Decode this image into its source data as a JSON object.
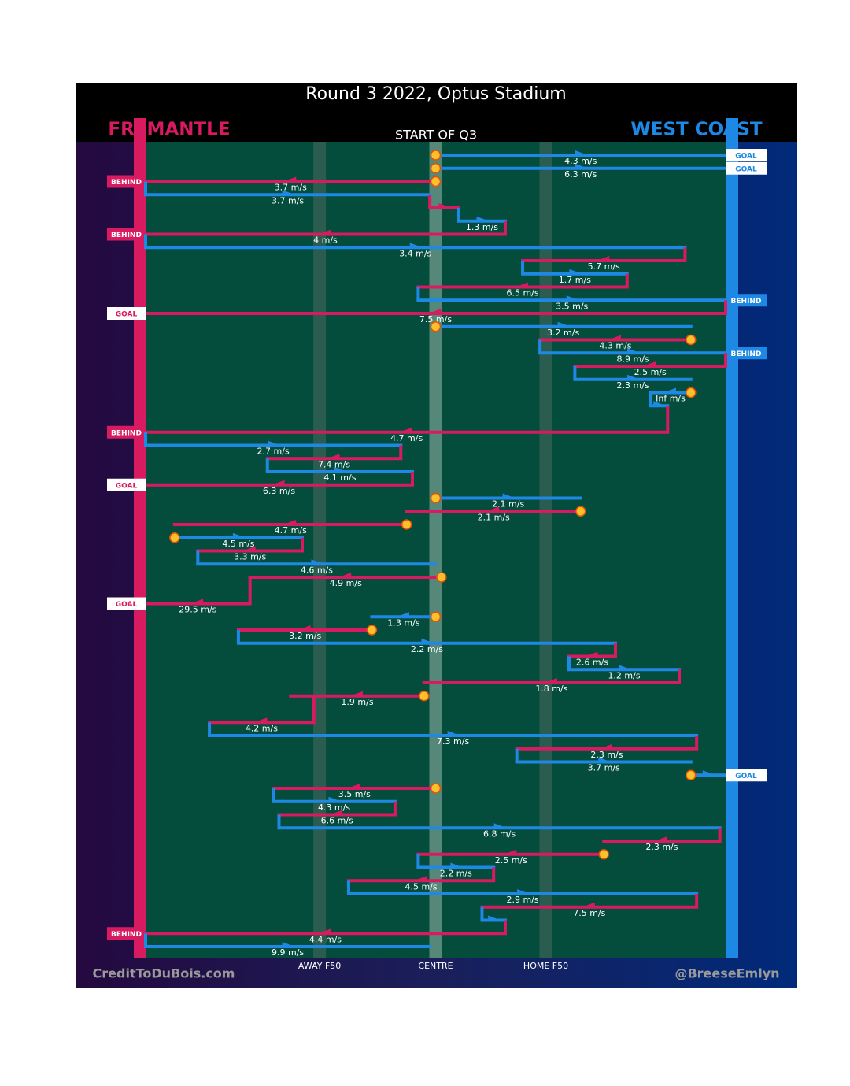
{
  "title": "Round 3 2022, Optus Stadium",
  "subtitle": "START OF Q3",
  "teams": [
    {
      "name": "FREMANTLE",
      "color": "#d81b60"
    },
    {
      "name": "WEST COAST",
      "color": "#1e88e5"
    }
  ],
  "field_markers": [
    {
      "label": "AWAY F50",
      "pos": 30
    },
    {
      "label": "CENTRE",
      "pos": 50
    },
    {
      "label": "HOME F50",
      "pos": 69
    }
  ],
  "footer": {
    "left": "CreditToDuBois.com",
    "right": "@BreeseEmlyn"
  },
  "segments": [
    {
      "row": 0,
      "team": 1,
      "from": 50,
      "to": 100,
      "speed": "4.3 m/s",
      "dot": true,
      "outcome": "GOAL"
    },
    {
      "row": 1,
      "team": 1,
      "from": 50,
      "to": 100,
      "speed": "6.3 m/s",
      "dot": true,
      "outcome": "GOAL"
    },
    {
      "row": 2,
      "team": 0,
      "from": 50,
      "to": 0,
      "speed": "3.7 m/s",
      "dot": true,
      "outcome": "BEHIND"
    },
    {
      "row": 3,
      "team": 1,
      "from": 0,
      "to": 49,
      "speed": "3.7 m/s"
    },
    {
      "row": 4,
      "team": 0,
      "from": 49,
      "to": 54
    },
    {
      "row": 5,
      "team": 1,
      "from": 54,
      "to": 62,
      "speed": "1.3 m/s"
    },
    {
      "row": 6,
      "team": 0,
      "from": 62,
      "to": 0,
      "speed": "4 m/s",
      "outcome": "BEHIND"
    },
    {
      "row": 7,
      "team": 1,
      "from": 0,
      "to": 93,
      "speed": "3.4 m/s"
    },
    {
      "row": 8,
      "team": 0,
      "from": 93,
      "to": 65,
      "speed": "5.7 m/s"
    },
    {
      "row": 9,
      "team": 1,
      "from": 65,
      "to": 83,
      "speed": "1.7 m/s"
    },
    {
      "row": 10,
      "team": 0,
      "from": 83,
      "to": 47,
      "speed": "6.5 m/s"
    },
    {
      "row": 11,
      "team": 1,
      "from": 47,
      "to": 100,
      "speed": "3.5 m/s",
      "outcome": "BEHIND"
    },
    {
      "row": 12,
      "team": 0,
      "from": 100,
      "to": 0,
      "speed": "7.5 m/s",
      "outcome": "GOAL"
    },
    {
      "row": 13,
      "team": 1,
      "from": 50,
      "to": 94,
      "speed": "3.2 m/s",
      "dot": true
    },
    {
      "row": 14,
      "team": 0,
      "from": 94,
      "to": 68,
      "speed": "4.3 m/s",
      "dot": true
    },
    {
      "row": 15,
      "team": 1,
      "from": 68,
      "to": 100,
      "speed": "8.9 m/s",
      "outcome": "BEHIND"
    },
    {
      "row": 16,
      "team": 0,
      "from": 100,
      "to": 74,
      "speed": "2.5 m/s"
    },
    {
      "row": 17,
      "team": 1,
      "from": 74,
      "to": 94,
      "speed": "2.3 m/s"
    },
    {
      "row": 18,
      "team": 1,
      "from": 94,
      "to": 87,
      "speed": "Inf m/s",
      "dot": true
    },
    {
      "row": 19,
      "team": 1,
      "from": 87,
      "to": 90
    },
    {
      "row": 21,
      "team": 0,
      "from": 90,
      "to": 0,
      "speed": "4.7 m/s",
      "outcome": "BEHIND"
    },
    {
      "row": 22,
      "team": 1,
      "from": 0,
      "to": 44,
      "speed": "2.7 m/s"
    },
    {
      "row": 23,
      "team": 0,
      "from": 44,
      "to": 21,
      "speed": "7.4 m/s"
    },
    {
      "row": 24,
      "team": 1,
      "from": 21,
      "to": 46,
      "speed": "4.1 m/s"
    },
    {
      "row": 25,
      "team": 0,
      "from": 46,
      "to": 0,
      "speed": "6.3 m/s",
      "outcome": "GOAL"
    },
    {
      "row": 26,
      "team": 1,
      "from": 50,
      "to": 75,
      "speed": "2.1 m/s",
      "dot": true
    },
    {
      "row": 27,
      "team": 0,
      "from": 75,
      "to": 45,
      "speed": "2.1 m/s",
      "dot": true
    },
    {
      "row": 28,
      "team": 0,
      "from": 45,
      "to": 5,
      "speed": "4.7 m/s",
      "dot": true
    },
    {
      "row": 29,
      "team": 1,
      "from": 5,
      "to": 27,
      "speed": "4.5 m/s",
      "dot": true
    },
    {
      "row": 30,
      "team": 0,
      "from": 27,
      "to": 9,
      "speed": "3.3 m/s"
    },
    {
      "row": 31,
      "team": 1,
      "from": 9,
      "to": 50,
      "speed": "4.6 m/s"
    },
    {
      "row": 32,
      "team": 0,
      "from": 51,
      "to": 18,
      "speed": "4.9 m/s",
      "dot": true
    },
    {
      "row": 34,
      "team": 0,
      "from": 18,
      "to": 0,
      "speed": "29.5 m/s",
      "outcome": "GOAL"
    },
    {
      "row": 35,
      "team": 1,
      "from": 50,
      "to": 39,
      "speed": "1.3 m/s",
      "dot": true
    },
    {
      "row": 36,
      "team": 0,
      "from": 39,
      "to": 16,
      "speed": "3.2 m/s",
      "dot": true
    },
    {
      "row": 37,
      "team": 1,
      "from": 16,
      "to": 81,
      "speed": "2.2 m/s"
    },
    {
      "row": 38,
      "team": 0,
      "from": 81,
      "to": 73,
      "speed": "2.6 m/s"
    },
    {
      "row": 39,
      "team": 1,
      "from": 73,
      "to": 92,
      "speed": "1.2 m/s"
    },
    {
      "row": 40,
      "team": 0,
      "from": 92,
      "to": 48,
      "speed": "1.8 m/s"
    },
    {
      "row": 41,
      "team": 0,
      "from": 48,
      "to": 25,
      "speed": "1.9 m/s",
      "dot": true
    },
    {
      "row": 43,
      "team": 0,
      "from": 29,
      "to": 11,
      "speed": "4.2 m/s"
    },
    {
      "row": 44,
      "team": 1,
      "from": 11,
      "to": 95,
      "speed": "7.3 m/s"
    },
    {
      "row": 45,
      "team": 0,
      "from": 95,
      "to": 64,
      "speed": "2.3 m/s"
    },
    {
      "row": 46,
      "team": 1,
      "from": 64,
      "to": 94,
      "speed": "3.7 m/s"
    },
    {
      "row": 47,
      "team": 1,
      "from": 94,
      "to": 100,
      "dot": true,
      "outcome": "GOAL"
    },
    {
      "row": 48,
      "team": 0,
      "from": 50,
      "to": 22,
      "speed": "3.5 m/s",
      "dot": true
    },
    {
      "row": 49,
      "team": 1,
      "from": 22,
      "to": 43,
      "speed": "4.3 m/s"
    },
    {
      "row": 50,
      "team": 0,
      "from": 43,
      "to": 23,
      "speed": "6.6 m/s"
    },
    {
      "row": 51,
      "team": 1,
      "from": 23,
      "to": 99,
      "speed": "6.8 m/s"
    },
    {
      "row": 52,
      "team": 0,
      "from": 99,
      "to": 79,
      "speed": "2.3 m/s"
    },
    {
      "row": 53,
      "team": 0,
      "from": 79,
      "to": 47,
      "speed": "2.5 m/s",
      "dot": true
    },
    {
      "row": 54,
      "team": 1,
      "from": 47,
      "to": 60,
      "speed": "2.2 m/s"
    },
    {
      "row": 55,
      "team": 0,
      "from": 60,
      "to": 35,
      "speed": "4.5 m/s"
    },
    {
      "row": 56,
      "team": 1,
      "from": 35,
      "to": 95,
      "speed": "2.9 m/s"
    },
    {
      "row": 57,
      "team": 0,
      "from": 95,
      "to": 58,
      "speed": "7.5 m/s"
    },
    {
      "row": 58,
      "team": 1,
      "from": 58,
      "to": 62
    },
    {
      "row": 59,
      "team": 0,
      "from": 62,
      "to": 0,
      "speed": "4.4 m/s",
      "outcome": "BEHIND"
    },
    {
      "row": 60,
      "team": 1,
      "from": 0,
      "to": 49,
      "speed": "9.9 m/s"
    }
  ]
}
